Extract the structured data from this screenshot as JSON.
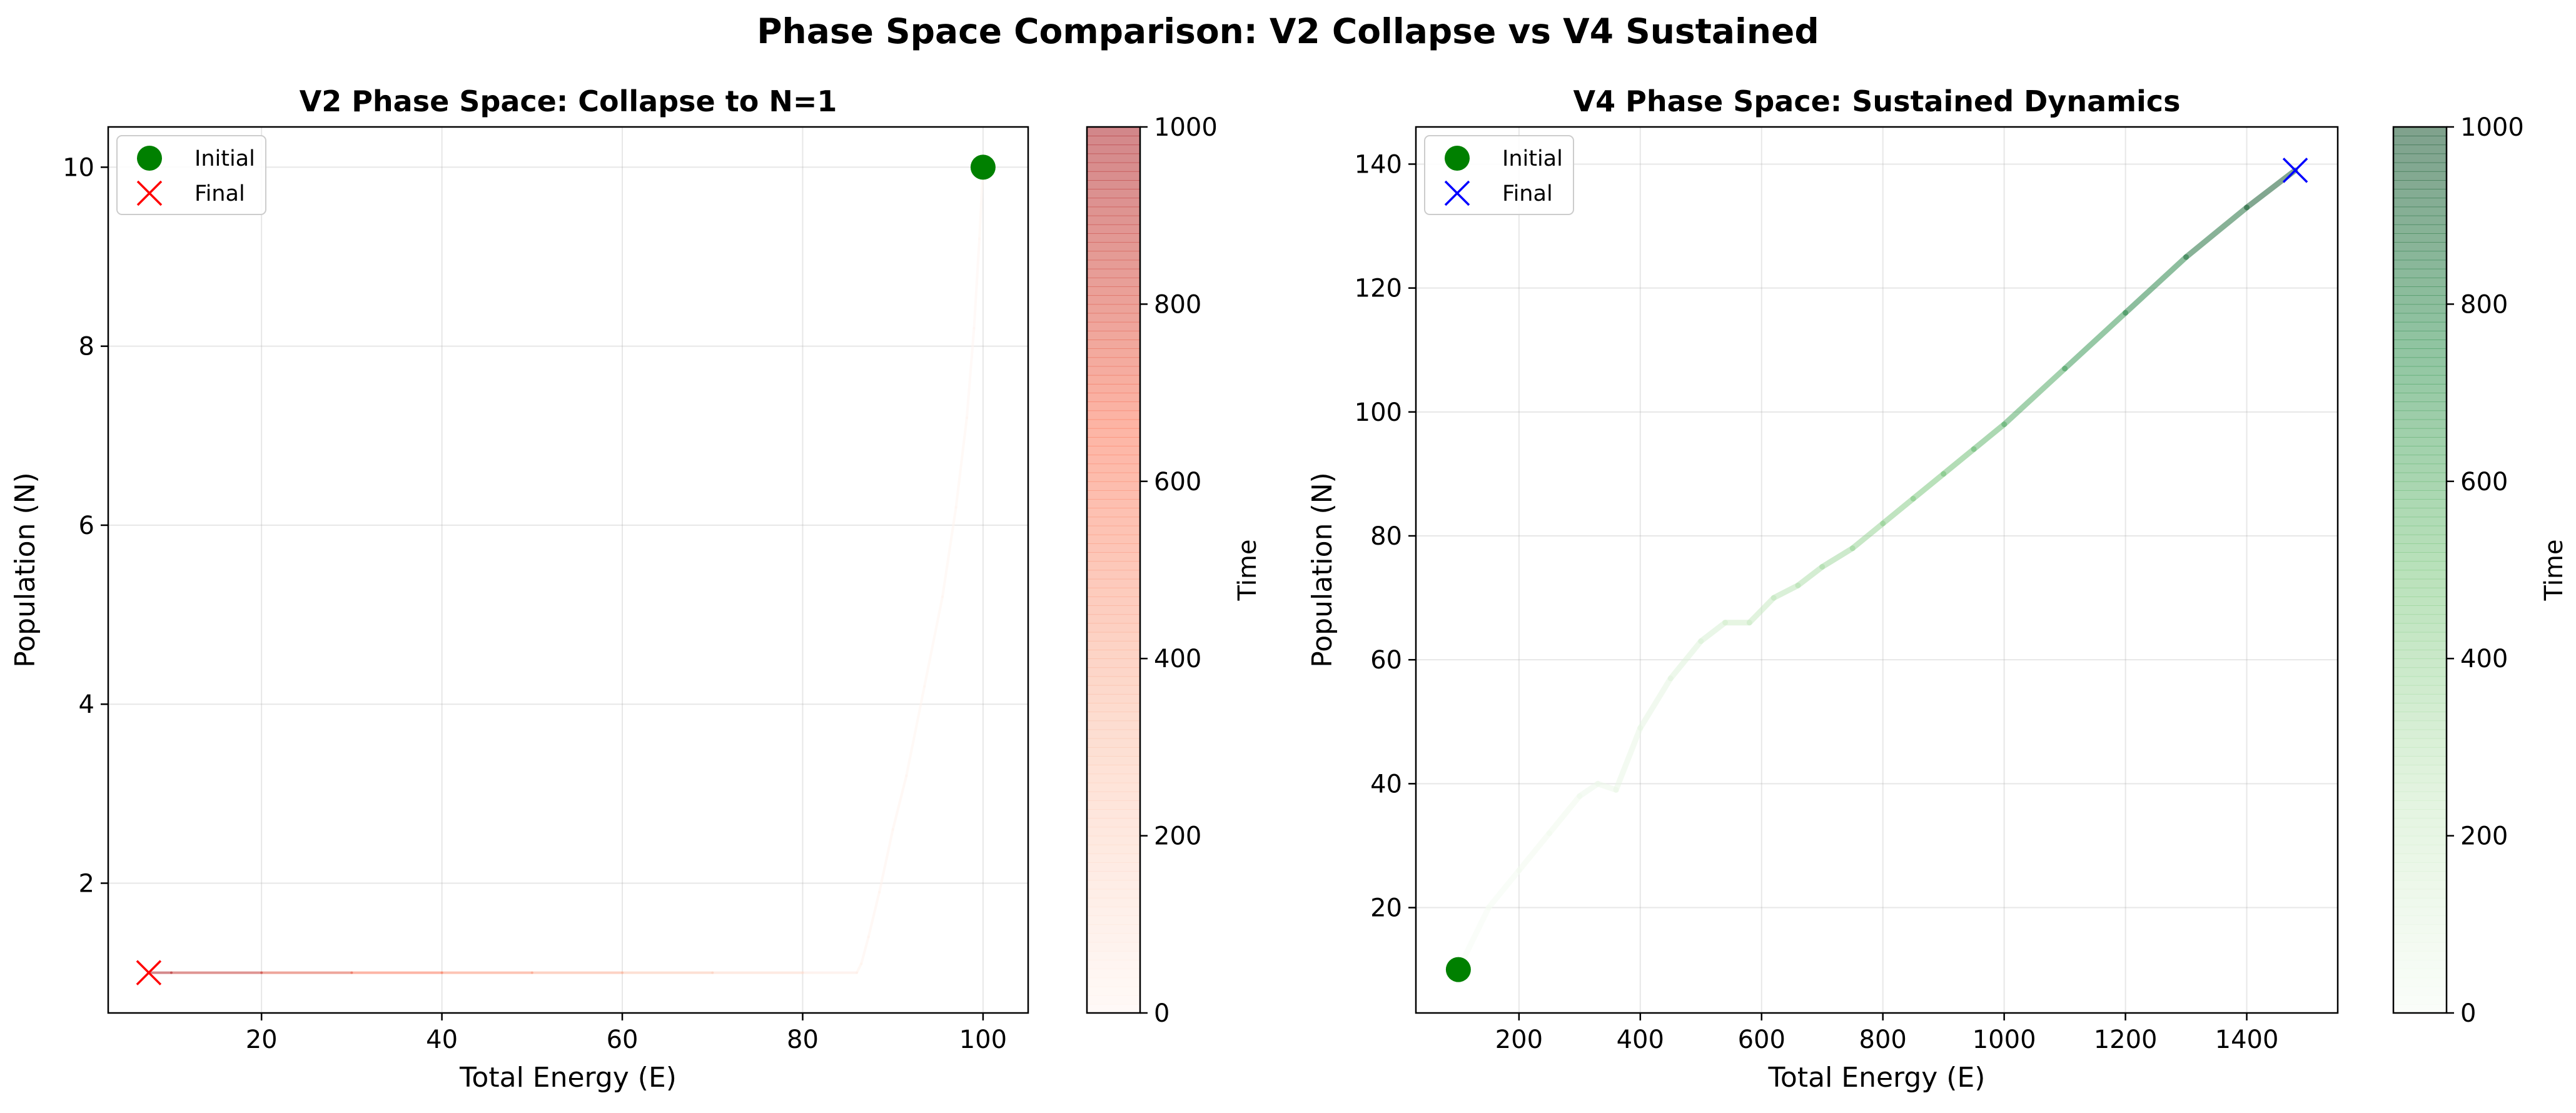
{
  "figure_title": "Phase Space Comparison: V2 Collapse vs V4 Sustained",
  "chart_data": [
    {
      "type": "line",
      "title": "V2 Phase Space: Collapse to N=1",
      "xlabel": "Total Energy (E)",
      "ylabel": "Population (N)",
      "xlim": [
        3,
        105
      ],
      "ylim": [
        0.55,
        10.45
      ],
      "xticks": [
        20,
        40,
        60,
        80,
        100
      ],
      "yticks": [
        2,
        4,
        6,
        8,
        10
      ],
      "grid": true,
      "legend_position": "top-left",
      "colormap": "Reds",
      "colormap_colors": [
        "#fff5f0",
        "#fcbba1",
        "#fb6a4a",
        "#a50f15"
      ],
      "trajectory_alpha": 0.5,
      "series": [
        {
          "name": "",
          "x": [
            100,
            99.6,
            99.0,
            98.2,
            97.0,
            95.5,
            93.5,
            91.5,
            90.0,
            88.5,
            87.3,
            86.5,
            86.0,
            80,
            70,
            60,
            50,
            40,
            30,
            20,
            10,
            7.5
          ],
          "y": [
            10,
            9.2,
            8.2,
            7.2,
            6.2,
            5.2,
            4.2,
            3.2,
            2.6,
            1.9,
            1.4,
            1.1,
            1.0,
            1.0,
            1.0,
            1.0,
            1.0,
            1.0,
            1.0,
            1.0,
            1.0,
            1.0
          ],
          "t": [
            0,
            2,
            4,
            6,
            8,
            10,
            12,
            14,
            16,
            18,
            20,
            22,
            25,
            120,
            240,
            360,
            480,
            600,
            720,
            840,
            960,
            1000
          ]
        }
      ],
      "markers": {
        "initial": {
          "label": "Initial",
          "x": 100,
          "y": 10,
          "color": "#008000",
          "symbol": "circle"
        },
        "final": {
          "label": "Final",
          "x": 7.5,
          "y": 1,
          "color": "#ff0000",
          "symbol": "x"
        }
      },
      "colorbar": {
        "label": "Time",
        "min": 0,
        "max": 1000,
        "ticks": [
          0,
          200,
          400,
          600,
          800,
          1000
        ]
      }
    },
    {
      "type": "line",
      "title": "V4 Phase Space: Sustained Dynamics",
      "xlabel": "Total Energy (E)",
      "ylabel": "Population (N)",
      "xlim": [
        30,
        1550
      ],
      "ylim": [
        3,
        146
      ],
      "xticks": [
        200,
        400,
        600,
        800,
        1000,
        1200,
        1400
      ],
      "yticks": [
        20,
        40,
        60,
        80,
        100,
        120,
        140
      ],
      "grid": true,
      "legend_position": "top-left",
      "colormap": "Greens",
      "colormap_colors": [
        "#f7fcf5",
        "#c7e9c0",
        "#74c476",
        "#238b45",
        "#00441b"
      ],
      "trajectory_alpha": 0.5,
      "series": [
        {
          "name": "",
          "x": [
            100,
            150,
            200,
            250,
            300,
            330,
            360,
            400,
            450,
            500,
            540,
            580,
            620,
            660,
            700,
            750,
            800,
            850,
            900,
            950,
            1000,
            1100,
            1200,
            1300,
            1400,
            1480
          ],
          "y": [
            10,
            20,
            26,
            32,
            38,
            40,
            39,
            49,
            57,
            63,
            66,
            66,
            70,
            72,
            75,
            78,
            82,
            86,
            90,
            94,
            98,
            107,
            116,
            125,
            133,
            139
          ],
          "t": [
            0,
            12,
            25,
            37,
            50,
            60,
            70,
            90,
            120,
            160,
            200,
            240,
            280,
            320,
            360,
            400,
            440,
            480,
            520,
            560,
            600,
            680,
            760,
            840,
            920,
            1000
          ]
        }
      ],
      "markers": {
        "initial": {
          "label": "Initial",
          "x": 100,
          "y": 10,
          "color": "#008000",
          "symbol": "circle"
        },
        "final": {
          "label": "Final",
          "x": 1480,
          "y": 139,
          "color": "#0000ff",
          "symbol": "x"
        }
      },
      "colorbar": {
        "label": "Time",
        "min": 0,
        "max": 1000,
        "ticks": [
          0,
          200,
          400,
          600,
          800,
          1000
        ]
      }
    }
  ]
}
